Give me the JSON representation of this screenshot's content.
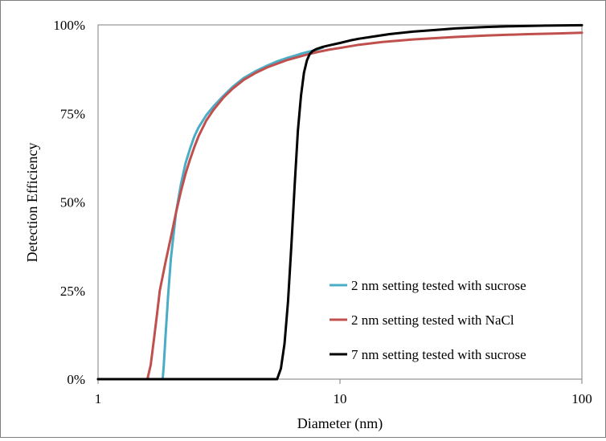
{
  "chart_data": {
    "type": "line",
    "xscale": "log",
    "xlim": [
      1,
      100
    ],
    "ylim": [
      0,
      100
    ],
    "xlabel": "Diameter (nm)",
    "ylabel": "Detection Efficiency",
    "x_ticks": [
      {
        "value": 1,
        "label": "1"
      },
      {
        "value": 10,
        "label": "10"
      },
      {
        "value": 100,
        "label": "100"
      }
    ],
    "y_ticks": [
      {
        "value": 0,
        "label": "0%"
      },
      {
        "value": 25,
        "label": "25%"
      },
      {
        "value": 50,
        "label": "50%"
      },
      {
        "value": 75,
        "label": "75%"
      },
      {
        "value": 100,
        "label": "100%"
      }
    ],
    "grid": false,
    "legend_position": "bottom-right",
    "series": [
      {
        "name": "2 nm setting tested with sucrose",
        "color": "#4bacc6",
        "x": [
          1.0,
          1.85,
          1.87,
          1.9,
          1.95,
          2.0,
          2.1,
          2.2,
          2.3,
          2.4,
          2.5,
          2.6,
          2.8,
          3.0,
          3.3,
          3.6,
          4.0,
          4.5,
          5.0,
          5.5,
          6.0,
          6.5,
          7.0,
          7.5,
          8.0,
          8.5
        ],
        "y": [
          0,
          0,
          4,
          12,
          24,
          34,
          47,
          55,
          61,
          65,
          68.5,
          71,
          74.5,
          77,
          80,
          82.5,
          85,
          87,
          88.5,
          89.7,
          90.6,
          91.3,
          92,
          92.5,
          93,
          93.6
        ]
      },
      {
        "name": "2 nm setting tested with NaCl",
        "color": "#c0504d",
        "x": [
          1.0,
          1.6,
          1.65,
          1.7,
          1.75,
          1.8,
          1.9,
          2.0,
          2.1,
          2.2,
          2.3,
          2.4,
          2.5,
          2.6,
          2.8,
          3.0,
          3.3,
          3.6,
          4.0,
          4.5,
          5.0,
          6.0,
          7.0,
          8.0,
          9.0,
          10.0,
          12.0,
          15.0,
          20.0,
          30.0,
          40.0,
          60.0,
          80.0,
          100.0
        ],
        "y": [
          0,
          0,
          4,
          11,
          18,
          25,
          33,
          40,
          47,
          53,
          58,
          62,
          65.5,
          68.5,
          73,
          76,
          79.5,
          82,
          84.5,
          86.5,
          88,
          90,
          91.3,
          92.3,
          93,
          93.5,
          94.4,
          95.2,
          95.9,
          96.6,
          97.0,
          97.4,
          97.6,
          97.8
        ]
      },
      {
        "name": "7 nm setting tested with sucrose",
        "color": "#000000",
        "x": [
          1.0,
          5.5,
          5.7,
          5.9,
          6.1,
          6.3,
          6.5,
          6.7,
          6.9,
          7.1,
          7.3,
          7.5,
          7.7,
          8.0,
          8.5,
          9.0,
          10.0,
          11.0,
          12.0,
          14.0,
          16.0,
          20.0,
          25.0,
          30.0,
          40.0,
          50.0,
          70.0,
          100.0
        ],
        "y": [
          0,
          0,
          3,
          10,
          22,
          38,
          55,
          70,
          80,
          86.5,
          90,
          91.8,
          92.6,
          93.2,
          93.8,
          94.2,
          94.9,
          95.6,
          96.1,
          96.8,
          97.4,
          98.1,
          98.6,
          99.0,
          99.4,
          99.6,
          99.8,
          99.9
        ]
      }
    ]
  }
}
